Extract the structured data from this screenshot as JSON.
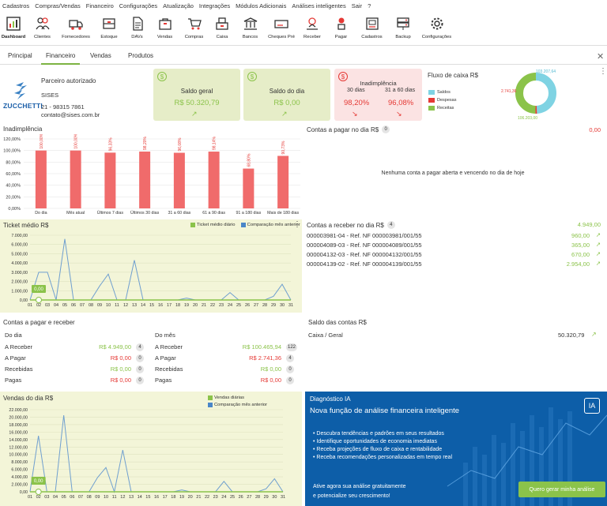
{
  "menu": [
    "Cadastros",
    "Compras/Vendas",
    "Financeiro",
    "Configurações",
    "Atualização",
    "Integrações",
    "Módulos Adicionais",
    "Análises inteligentes",
    "Sair",
    "?"
  ],
  "toolbar": [
    {
      "label": "Dashboard",
      "icon": "dashboard-icon"
    },
    {
      "label": "Clientes",
      "icon": "clients-icon"
    },
    {
      "label": "Fornecedores",
      "icon": "suppliers-icon"
    },
    {
      "label": "Estoque",
      "icon": "stock-icon"
    },
    {
      "label": "DAVs",
      "icon": "document-icon"
    },
    {
      "label": "Vendas",
      "icon": "sales-icon"
    },
    {
      "label": "Compras",
      "icon": "cart-icon"
    },
    {
      "label": "Caixa",
      "icon": "cash-register-icon"
    },
    {
      "label": "Bancos",
      "icon": "bank-icon"
    },
    {
      "label": "Cheques Pré",
      "icon": "check-icon"
    },
    {
      "label": "Receber",
      "icon": "receive-icon"
    },
    {
      "label": "Pagar",
      "icon": "pay-icon"
    },
    {
      "label": "Cadastros",
      "icon": "register-icon"
    },
    {
      "label": "Backup",
      "icon": "backup-icon"
    },
    {
      "label": "Configurações",
      "icon": "gear-icon"
    }
  ],
  "tabs": [
    "Principal",
    "Financeiro",
    "Vendas",
    "Produtos"
  ],
  "partner": {
    "title": "Parceiro autorizado",
    "logo": "ZUCCHETTI",
    "company": "SISES",
    "phone": "21 - 98315 7861",
    "email": "contato@sises.com.br"
  },
  "saldo_geral": {
    "label": "Saldo geral",
    "value": "R$ 50.320,79"
  },
  "saldo_dia": {
    "label": "Saldo do dia",
    "value": "R$ 0,00"
  },
  "inadimplencia_card": {
    "label": "Inadimplência",
    "c1_label": "30 dias",
    "c1_value": "98,20%",
    "c2_label": "31 a 60 dias",
    "c2_value": "96,08%"
  },
  "fluxo": {
    "title": "Fluxo de caixa R$",
    "legend": [
      "Saldos",
      "Despesas",
      "Receitas"
    ],
    "colors": [
      "#7fd3e3",
      "#e53935",
      "#8bc34a"
    ],
    "label_top": "103.207,64",
    "label_left": "2.741,36",
    "label_bottom": "106.203,00"
  },
  "inad_chart": {
    "title": "Inadimplência",
    "yticks": [
      "120,00%",
      "100,00%",
      "80,00%",
      "60,00%",
      "40,00%",
      "20,00%",
      "0,00%"
    ],
    "categories": [
      "Do dia",
      "Mês atual",
      "Últimos 7 dias",
      "Últimos 30 dias",
      "31 a 60 dias",
      "61 a 90 dias",
      "91 a 180 dias",
      "Mais de 180 dias"
    ],
    "values": [
      100,
      100,
      96.33,
      98.2,
      96.08,
      98.14,
      68.8,
      90.73
    ],
    "labels": [
      "100,00%",
      "100,00%",
      "96,33%",
      "98,20%",
      "96,08%",
      "98,14%",
      "68,80%",
      "90,73%"
    ]
  },
  "contas_pagar_dia": {
    "title": "Contas a pagar no dia R$",
    "count": "0",
    "total": "0,00",
    "empty": "Nenhuma conta a pagar aberta e vencendo no dia de hoje"
  },
  "ticket": {
    "title": "Ticket médio R$",
    "legend1": "Ticket médio diário",
    "legend2": "Comparação mês anterior",
    "tooltip": "0,00",
    "yticks": [
      "7.000,00",
      "6.000,00",
      "5.000,00",
      "4.000,00",
      "3.000,00",
      "2.000,00",
      "1.000,00",
      "0,00"
    ],
    "days": [
      "01",
      "02",
      "03",
      "04",
      "05",
      "06",
      "07",
      "08",
      "09",
      "10",
      "11",
      "12",
      "13",
      "14",
      "15",
      "16",
      "17",
      "18",
      "19",
      "20",
      "21",
      "22",
      "23",
      "24",
      "25",
      "26",
      "27",
      "28",
      "29",
      "30",
      "31"
    ],
    "values": [
      0,
      3000,
      3000,
      0,
      6600,
      0,
      0,
      0,
      1500,
      2800,
      0,
      0,
      4300,
      0,
      0,
      0,
      0,
      0,
      200,
      0,
      0,
      0,
      0,
      800,
      0,
      0,
      0,
      0,
      400,
      1700,
      0
    ]
  },
  "contas_receber_dia": {
    "title": "Contas a receber no dia R$",
    "count": "4",
    "total": "4.949,00",
    "rows": [
      {
        "desc": "000003981-04 - Ref. NF 000003981/001/55",
        "value": "960,00"
      },
      {
        "desc": "000004089-03 - Ref. NF 000004089/001/55",
        "value": "365,00"
      },
      {
        "desc": "000004132-03 - Ref. NF 000004132/001/55",
        "value": "670,00"
      },
      {
        "desc": "000004139-02 - Ref. NF 000004139/001/55",
        "value": "2.954,00"
      }
    ]
  },
  "pagar_receber": {
    "title": "Contas a pagar e receber",
    "col1": "Do dia",
    "col2": "Do mês",
    "dia": [
      {
        "label": "A Receber",
        "value": "R$ 4.949,00",
        "count": "4",
        "color": "g"
      },
      {
        "label": "A Pagar",
        "value": "R$ 0,00",
        "count": "0",
        "color": "r"
      },
      {
        "label": "Recebidas",
        "value": "R$ 0,00",
        "count": "0",
        "color": "g"
      },
      {
        "label": "Pagas",
        "value": "R$ 0,00",
        "count": "0",
        "color": "r"
      }
    ],
    "mes": [
      {
        "label": "A Receber",
        "value": "R$ 100.465,94",
        "count": "122",
        "color": "g"
      },
      {
        "label": "A Pagar",
        "value": "R$ 2.741,36",
        "count": "4",
        "color": "r"
      },
      {
        "label": "Recebidas",
        "value": "R$ 0,00",
        "count": "0",
        "color": "g"
      },
      {
        "label": "Pagas",
        "value": "R$ 0,00",
        "count": "0",
        "color": "r"
      }
    ]
  },
  "saldo_contas": {
    "title": "Saldo das contas R$",
    "account": "Caixa / Geral",
    "value": "50.320,79"
  },
  "vendas_dia": {
    "title": "Vendas do dia R$",
    "legend1": "Vendas diárias",
    "legend2": "Comparação mês anterior",
    "tooltip": "0,00",
    "yticks": [
      "22.000,00",
      "20.000,00",
      "18.000,00",
      "16.000,00",
      "14.000,00",
      "12.000,00",
      "10.000,00",
      "8.000,00",
      "6.000,00",
      "4.000,00",
      "2.000,00",
      "0,00"
    ],
    "days": [
      "01",
      "02",
      "03",
      "04",
      "05",
      "06",
      "07",
      "08",
      "09",
      "10",
      "11",
      "12",
      "13",
      "14",
      "15",
      "16",
      "17",
      "18",
      "19",
      "20",
      "21",
      "22",
      "23",
      "24",
      "25",
      "26",
      "27",
      "28",
      "29",
      "30",
      "31"
    ],
    "values": [
      0,
      15000,
      0,
      0,
      20500,
      0,
      0,
      0,
      3800,
      6500,
      0,
      11200,
      0,
      0,
      0,
      0,
      0,
      0,
      500,
      0,
      0,
      0,
      0,
      2800,
      0,
      0,
      0,
      0,
      800,
      3500,
      0
    ]
  },
  "ia": {
    "title": "Diagnóstico IA",
    "headline": "Nova função de análise financeira inteligente",
    "bullets": [
      "Descubra tendências e padrões em seus resultados",
      "Identifique oportunidades de economia imediatas",
      "Receba projeções de fluxo de caixa e rentabilidade",
      "Receba recomendações personalizadas em tempo real"
    ],
    "cta1": "Ative agora sua análise gratuitamente",
    "cta2": "e potencialize seu crescimento!",
    "button": "Quero gerar minha análise"
  }
}
